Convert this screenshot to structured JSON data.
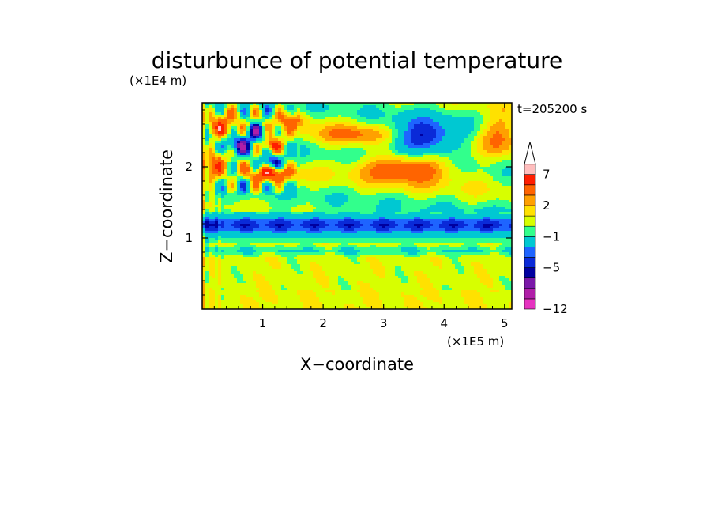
{
  "chart_data": {
    "type": "heatmap",
    "title": "disturbunce of potential temperature",
    "xlabel": "X−coordinate",
    "ylabel": "Z−coordinate",
    "x_unit": "(×1E5 m)",
    "y_unit": "(×1E4 m)",
    "time_label": "t=205200 s",
    "xlim": [
      0,
      5.12
    ],
    "ylim": [
      0,
      2.9
    ],
    "x_ticks": [
      "1",
      "2",
      "3",
      "4",
      "5"
    ],
    "y_ticks": [
      "1",
      "2"
    ],
    "grid": false,
    "legend": "right",
    "colorbar": {
      "levels": [
        -12,
        -11,
        -10,
        -9,
        -8,
        -7,
        -6,
        -5,
        -4,
        -3,
        -2,
        -1,
        0,
        1,
        2,
        3,
        4,
        5,
        6,
        7,
        8,
        9
      ],
      "tick_labels": [
        "−12",
        "−5",
        "−1",
        "2",
        "7"
      ],
      "tick_values": [
        -12,
        -5,
        -1,
        2,
        7
      ],
      "colors": [
        "#e633c0",
        "#b01ea8",
        "#7a18a8",
        "#0000a0",
        "#0a2ad8",
        "#1e64ff",
        "#00c8d2",
        "#32ff8c",
        "#d7ff00",
        "#ffe100",
        "#ffa000",
        "#ff6400",
        "#ff1e00",
        "#ffbebe"
      ],
      "extend": "max"
    },
    "features": [
      {
        "x": 3.65,
        "z": 2.4,
        "dx": 0.6,
        "dz": 0.26,
        "v": -6
      },
      {
        "x": 3.4,
        "z": 2.0,
        "dx": 0.75,
        "dz": 0.22,
        "v": 5
      },
      {
        "x": 2.6,
        "z": 2.45,
        "dx": 0.7,
        "dz": 0.15,
        "v": 3
      },
      {
        "x": 1.15,
        "z": 1.9,
        "dx": 0.35,
        "dz": 0.12,
        "v": 5
      },
      {
        "x": 1.15,
        "z": 2.05,
        "dx": 0.18,
        "dz": 0.1,
        "v": -7
      },
      {
        "x": 1.15,
        "z": 2.3,
        "dx": 0.16,
        "dz": 0.1,
        "v": 6
      },
      {
        "x": 0.9,
        "z": 2.5,
        "dx": 0.18,
        "dz": 0.12,
        "v": -5
      },
      {
        "x": 0.6,
        "z": 2.3,
        "dx": 0.2,
        "dz": 0.12,
        "v": -5
      },
      {
        "x": 0.3,
        "z": 2.55,
        "dx": 0.2,
        "dz": 0.15,
        "v": 4
      },
      {
        "x": 0.2,
        "z": 2.0,
        "dx": 0.2,
        "dz": 0.2,
        "v": 3
      },
      {
        "x": 4.9,
        "z": 2.5,
        "dx": 0.35,
        "dz": 0.3,
        "v": 3
      },
      {
        "x": 1.5,
        "z": 2.65,
        "dx": 0.25,
        "dz": 0.12,
        "v": 3
      }
    ]
  }
}
